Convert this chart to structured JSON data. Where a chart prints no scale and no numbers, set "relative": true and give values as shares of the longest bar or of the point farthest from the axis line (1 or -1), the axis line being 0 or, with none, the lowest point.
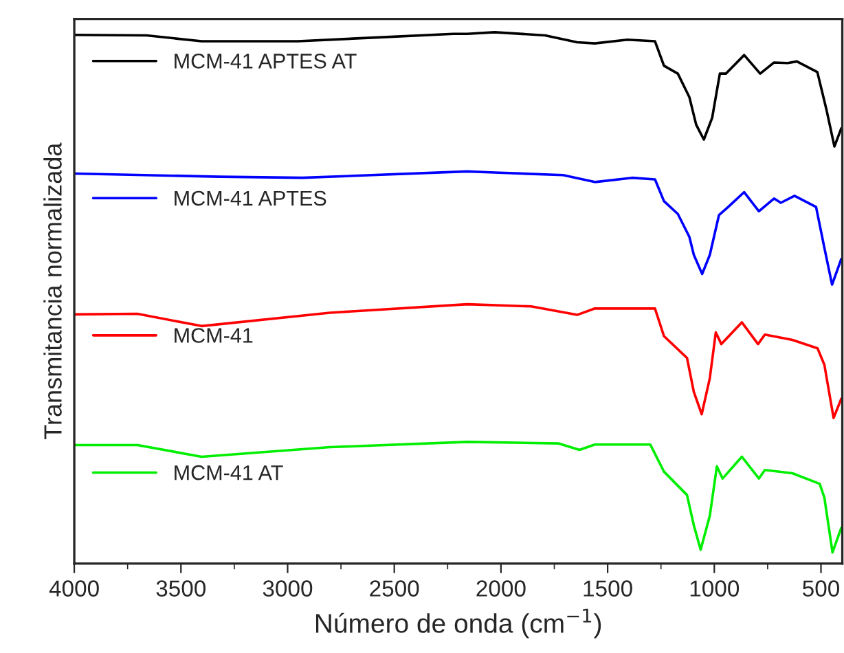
{
  "chart_data": {
    "type": "line",
    "relative": true,
    "xlabel": "Número de onda (cm$^{−1}$)",
    "ylabel": "Transmitancia normalizada",
    "xlim": [
      4000,
      400
    ],
    "xticks": [
      4000,
      3500,
      3000,
      2500,
      2000,
      1500,
      1000,
      500
    ],
    "grid": false,
    "legend": "top left",
    "marker": "none",
    "line_style": "solid",
    "series": [
      {
        "name": "MCM-41 APTES AT",
        "color": "#000000",
        "x": [
          4000,
          3661,
          3403,
          2952,
          2590,
          2223,
          2158,
          2030,
          1793,
          1643,
          1560,
          1407,
          1278,
          1236,
          1171,
          1117,
          1085,
          1049,
          1010,
          974,
          946,
          860,
          785,
          720,
          656,
          613,
          517,
          473,
          437,
          405
        ],
        "values": [
          0.995,
          0.994,
          0.983,
          0.983,
          0.99,
          0.997,
          0.997,
          1.0,
          0.994,
          0.981,
          0.979,
          0.986,
          0.983,
          0.937,
          0.922,
          0.878,
          0.826,
          0.798,
          0.839,
          0.922,
          0.922,
          0.957,
          0.922,
          0.943,
          0.942,
          0.945,
          0.925,
          0.852,
          0.785,
          0.819
        ]
      },
      {
        "name": "MCM-41 APTES",
        "color": "#0000ff",
        "x": [
          4000,
          3317,
          2931,
          2158,
          2030,
          1708,
          1560,
          1386,
          1278,
          1236,
          1171,
          1117,
          1096,
          1057,
          1021,
          978,
          935,
          860,
          791,
          720,
          688,
          624,
          523,
          484,
          448,
          405
        ],
        "values": [
          0.734,
          0.728,
          0.726,
          0.738,
          0.736,
          0.731,
          0.718,
          0.726,
          0.723,
          0.682,
          0.658,
          0.615,
          0.581,
          0.545,
          0.581,
          0.656,
          0.671,
          0.699,
          0.663,
          0.687,
          0.679,
          0.692,
          0.671,
          0.594,
          0.525,
          0.573
        ]
      },
      {
        "name": "MCM-41",
        "color": "#ff0000",
        "x": [
          4000,
          3704,
          3403,
          2802,
          2158,
          1858,
          1643,
          1560,
          1278,
          1236,
          1128,
          1096,
          1059,
          1021,
          993,
          967,
          871,
          795,
          763,
          634,
          516,
          484,
          441,
          405
        ],
        "values": [
          0.469,
          0.47,
          0.447,
          0.472,
          0.488,
          0.484,
          0.468,
          0.48,
          0.48,
          0.428,
          0.387,
          0.323,
          0.281,
          0.349,
          0.435,
          0.413,
          0.454,
          0.413,
          0.431,
          0.421,
          0.405,
          0.374,
          0.274,
          0.31
        ]
      },
      {
        "name": "MCM-41 AT",
        "color": "#00ee00",
        "x": [
          4000,
          3704,
          3403,
          2802,
          2158,
          1729,
          1632,
          1560,
          1300,
          1236,
          1128,
          1096,
          1064,
          1021,
          988,
          961,
          871,
          791,
          763,
          634,
          506,
          484,
          446,
          405
        ],
        "values": [
          0.223,
          0.223,
          0.201,
          0.219,
          0.229,
          0.226,
          0.214,
          0.224,
          0.224,
          0.173,
          0.129,
          0.072,
          0.026,
          0.09,
          0.183,
          0.16,
          0.201,
          0.16,
          0.176,
          0.17,
          0.15,
          0.124,
          0.021,
          0.067
        ]
      }
    ]
  }
}
